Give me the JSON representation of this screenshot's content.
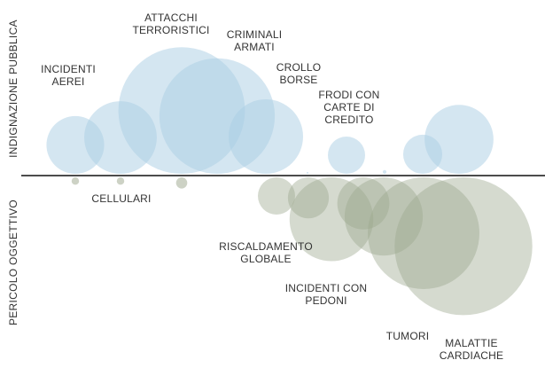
{
  "chart_data": {
    "type": "bubble",
    "y_axis_labels": {
      "top": "INDIGNAZIONE PUBBLICA",
      "bottom": "PERICOLO OGGETTIVO"
    },
    "colors": {
      "outrage": "#a9cde4",
      "outrage_opacity": 0.5,
      "danger": "#9ba68c",
      "danger_opacity": 0.42,
      "baseline": "#111111",
      "text": "#333333"
    },
    "outrage_bubbles": [
      {
        "id": "incidenti-aerei",
        "lines": [
          "INCIDENTI",
          "AEREI"
        ],
        "outrage": 0.31,
        "danger": 0.02
      },
      {
        "id": "cellulari",
        "lines": [
          "CELLULARI"
        ],
        "outrage": 0.39,
        "danger": 0.02
      },
      {
        "id": "attacchi-terroristici",
        "lines": [
          "ATTACCHI",
          "TERRORISTICI"
        ],
        "outrage": 0.68,
        "danger": 0.03
      },
      {
        "id": "criminali-armati",
        "lines": [
          "CRIMINALI",
          "ARMATI"
        ],
        "outrage": 0.62,
        "danger": 0
      },
      {
        "id": "crollo-borse",
        "lines": [
          "CROLLO",
          "BORSE"
        ],
        "outrage": 0.4,
        "danger": 0
      },
      {
        "id": "frodi-carte-di-credito",
        "lines": [
          "FRODI CON",
          "CARTE DI",
          "CREDITO"
        ],
        "outrage": 0.2,
        "danger": 0
      },
      {
        "id": "unlabeled-1",
        "lines": [],
        "outrage": 0.01,
        "danger": 0
      },
      {
        "id": "unlabeled-2",
        "lines": [],
        "outrage": 0.02,
        "danger": 0
      },
      {
        "id": "unlabeled-3",
        "lines": [],
        "outrage": 0.21,
        "danger": 0
      },
      {
        "id": "unlabeled-4",
        "lines": [],
        "outrage": 0.37,
        "danger": 0
      }
    ],
    "danger_bubbles": [
      {
        "id": "riscaldamento-globale",
        "lines": [
          "RISCALDAMENTO",
          "GLOBALE"
        ],
        "danger": 0.28
      },
      {
        "id": "incidenti-con-pedoni",
        "lines": [
          "INCIDENTI CON",
          "PEDONI"
        ],
        "danger": 0.42
      },
      {
        "id": "tumori",
        "lines": [
          "TUMORI"
        ],
        "danger": 0.6
      },
      {
        "id": "malattie-cardiache",
        "lines": [
          "MALATTIE",
          "CARDIACHE"
        ],
        "danger": 0.74
      },
      {
        "id": "unlabeled-5",
        "lines": [],
        "danger": 0.2
      },
      {
        "id": "unlabeled-6",
        "lines": [],
        "danger": 0.22
      },
      {
        "id": "unlabeled-7",
        "lines": [],
        "danger": 0.45
      }
    ]
  }
}
